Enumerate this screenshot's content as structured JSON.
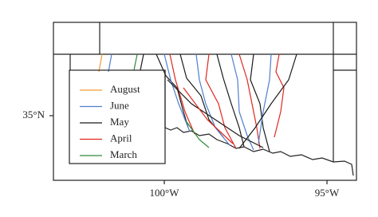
{
  "map": {
    "y_labels": [
      "35°N"
    ],
    "x_labels": [
      "100°W",
      "95°W"
    ],
    "legend": [
      {
        "name": "August",
        "color": "#f39c2f"
      },
      {
        "name": "June",
        "color": "#4f7fcf"
      },
      {
        "name": "May",
        "color": "#1a1a1a"
      },
      {
        "name": "April",
        "color": "#e0281f"
      },
      {
        "name": "March",
        "color": "#2e8b3a"
      }
    ]
  }
}
